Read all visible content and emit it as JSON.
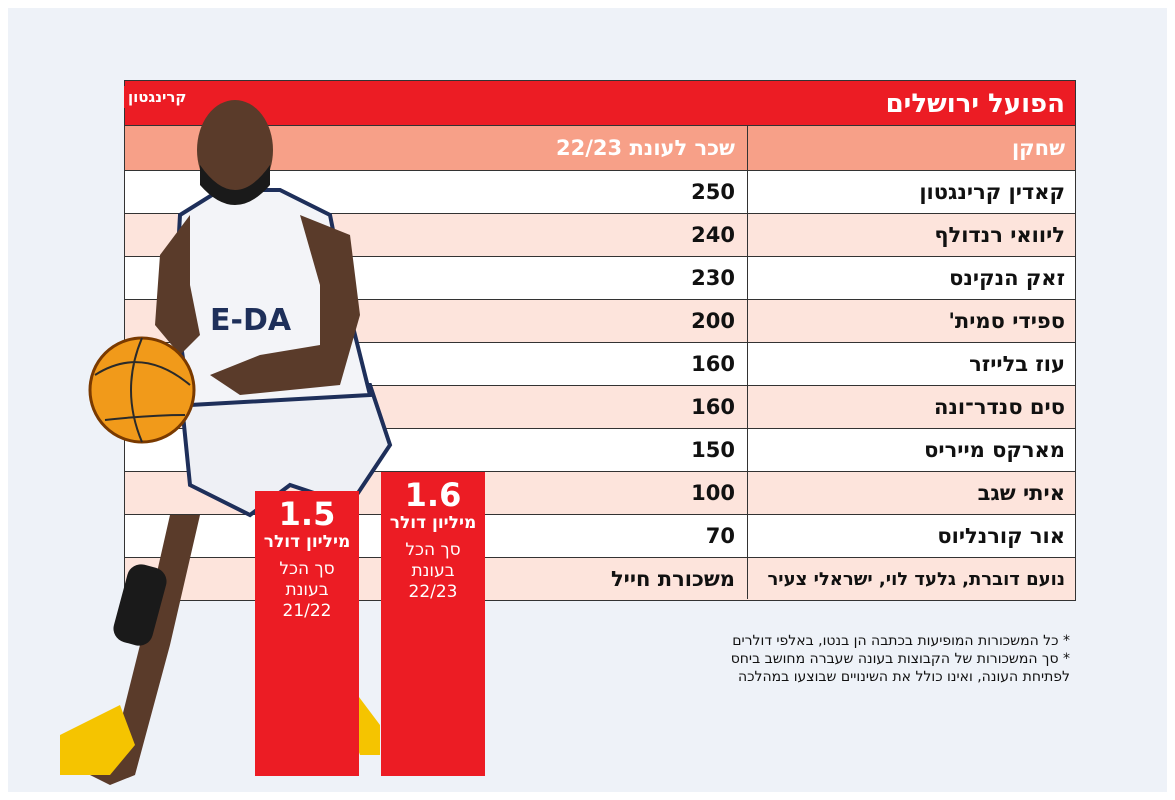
{
  "title": "הפועל ירושלים",
  "player_tag": "קרינגטון",
  "headers": {
    "player": "שחקן",
    "salary": "שכר לעונת 22/23"
  },
  "chart_data": {
    "type": "table",
    "rows": [
      {
        "player": "קאדין קרינגטון",
        "salary": "250"
      },
      {
        "player": "ליוואי רנדולף",
        "salary": "240"
      },
      {
        "player": "זאק הנקינס",
        "salary": "230"
      },
      {
        "player": "ספידי סמית'",
        "salary": "200"
      },
      {
        "player": "עוז בלייזר",
        "salary": "160"
      },
      {
        "player": "סים סנדר־ונה",
        "salary": "160"
      },
      {
        "player": "מארקס מייריס",
        "salary": "150"
      },
      {
        "player": "איתי שגב",
        "salary": "100"
      },
      {
        "player": "אור קורנליוס",
        "salary": "70"
      },
      {
        "player": "נועם דוברת, גלעד לוי, ישראלי צעיר",
        "salary": "משכורת חייל"
      }
    ],
    "totals": [
      {
        "value": "1.5",
        "unit": "מיליון דולר",
        "label1": "סך הכל",
        "label2": "בעונת",
        "season": "21/22",
        "amount": 1.5
      },
      {
        "value": "1.6",
        "unit": "מיליון דולר",
        "label1": "סך הכל",
        "label2": "בעונת",
        "season": "22/23",
        "amount": 1.6
      }
    ]
  },
  "footnotes": [
    "* כל המשכורות המופיעות בכתבה הן בנטו, באלפי דולרים",
    "* סך המשכורות של הקבוצות בעונה שעברה מחושב ביחס",
    "לפתיחת העונה, ואינו כולל את השינויים שבוצעו במהלכה"
  ],
  "colors": {
    "accent": "#ec1c24",
    "header": "#f7a088",
    "stripe": "#fde4dc"
  }
}
